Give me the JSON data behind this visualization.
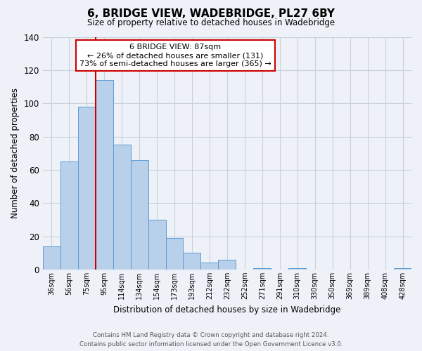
{
  "title": "6, BRIDGE VIEW, WADEBRIDGE, PL27 6BY",
  "subtitle": "Size of property relative to detached houses in Wadebridge",
  "bar_labels": [
    "36sqm",
    "56sqm",
    "75sqm",
    "95sqm",
    "114sqm",
    "134sqm",
    "154sqm",
    "173sqm",
    "193sqm",
    "212sqm",
    "232sqm",
    "252sqm",
    "271sqm",
    "291sqm",
    "310sqm",
    "330sqm",
    "350sqm",
    "369sqm",
    "389sqm",
    "408sqm",
    "428sqm"
  ],
  "bar_values": [
    14,
    65,
    98,
    114,
    75,
    66,
    30,
    19,
    10,
    4,
    6,
    0,
    1,
    0,
    1,
    0,
    0,
    0,
    0,
    0,
    1
  ],
  "bar_color": "#b8d0ea",
  "bar_edge_color": "#5b9bd5",
  "ylim": [
    0,
    140
  ],
  "yticks": [
    0,
    20,
    40,
    60,
    80,
    100,
    120,
    140
  ],
  "ylabel": "Number of detached properties",
  "xlabel": "Distribution of detached houses by size in Wadebridge",
  "vline_color": "#cc0000",
  "annotation_title": "6 BRIDGE VIEW: 87sqm",
  "annotation_line1": "← 26% of detached houses are smaller (131)",
  "annotation_line2": "73% of semi-detached houses are larger (365) →",
  "annotation_box_edge_color": "#cc0000",
  "footer_line1": "Contains HM Land Registry data © Crown copyright and database right 2024.",
  "footer_line2": "Contains public sector information licensed under the Open Government Licence v3.0.",
  "bg_color": "#eef2f8",
  "grid_color": "#c8d0dc"
}
